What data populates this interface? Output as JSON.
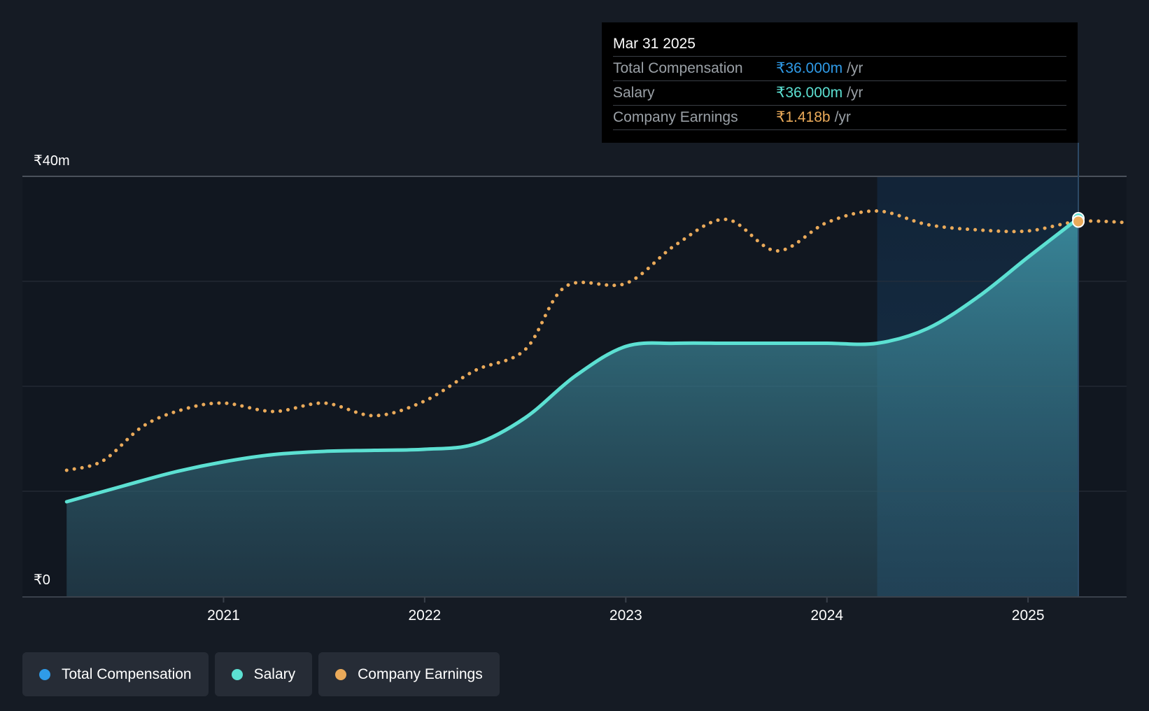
{
  "chart_data": {
    "type": "area",
    "currency": "₹",
    "y_unit": "m",
    "ylim": [
      0,
      40
    ],
    "y_tick_labels": {
      "top": "₹40m",
      "bottom": "₹0"
    },
    "grid_values": [
      10,
      20,
      30,
      40
    ],
    "x_tick_labels": [
      "2021",
      "2022",
      "2023",
      "2024",
      "2025"
    ],
    "x_tick_values": [
      2021.0,
      2022.0,
      2023.0,
      2024.0,
      2025.0
    ],
    "xlim": [
      2020.0,
      2025.49
    ],
    "highlight_start": 2024.25,
    "cursor_x": 2025.25,
    "series": [
      {
        "name": "Salary",
        "color": "#5ce0d2",
        "style": "solid-area",
        "points": [
          [
            2020.22,
            9.0
          ],
          [
            2020.5,
            10.5
          ],
          [
            2020.75,
            11.8
          ],
          [
            2021.0,
            12.8
          ],
          [
            2021.25,
            13.5
          ],
          [
            2021.5,
            13.8
          ],
          [
            2021.75,
            13.9
          ],
          [
            2022.0,
            14.0
          ],
          [
            2022.25,
            14.5
          ],
          [
            2022.5,
            17.0
          ],
          [
            2022.75,
            21.0
          ],
          [
            2023.0,
            23.8
          ],
          [
            2023.25,
            24.1
          ],
          [
            2023.5,
            24.1
          ],
          [
            2023.75,
            24.1
          ],
          [
            2024.0,
            24.1
          ],
          [
            2024.25,
            24.1
          ],
          [
            2024.5,
            25.5
          ],
          [
            2024.75,
            28.5
          ],
          [
            2025.0,
            32.3
          ],
          [
            2025.25,
            36.0
          ]
        ]
      },
      {
        "name": "Company Earnings",
        "color": "#eaaa5a",
        "style": "dotted",
        "points": [
          [
            2020.22,
            12.0
          ],
          [
            2020.4,
            12.9
          ],
          [
            2020.6,
            16.2
          ],
          [
            2020.8,
            17.8
          ],
          [
            2021.0,
            18.4
          ],
          [
            2021.25,
            17.6
          ],
          [
            2021.5,
            18.4
          ],
          [
            2021.75,
            17.2
          ],
          [
            2022.0,
            18.6
          ],
          [
            2022.25,
            21.5
          ],
          [
            2022.5,
            23.5
          ],
          [
            2022.7,
            29.5
          ],
          [
            2023.0,
            29.8
          ],
          [
            2023.25,
            33.5
          ],
          [
            2023.5,
            35.9
          ],
          [
            2023.75,
            32.9
          ],
          [
            2024.0,
            35.6
          ],
          [
            2024.25,
            36.7
          ],
          [
            2024.5,
            35.4
          ],
          [
            2024.75,
            34.9
          ],
          [
            2025.0,
            34.8
          ],
          [
            2025.25,
            35.7
          ],
          [
            2025.49,
            35.6
          ]
        ]
      }
    ],
    "tooltip": {
      "date": "Mar 31 2025",
      "rows": [
        {
          "label": "Total Compensation",
          "value": "₹36.000m",
          "unit": "/yr",
          "color": "#2f9be8"
        },
        {
          "label": "Salary",
          "value": "₹36.000m",
          "unit": "/yr",
          "color": "#5ce0d2"
        },
        {
          "label": "Company Earnings",
          "value": "₹1.418b",
          "unit": "/yr",
          "color": "#eaaa5a"
        }
      ]
    },
    "legend": [
      {
        "label": "Total Compensation",
        "color": "#2f9be8"
      },
      {
        "label": "Salary",
        "color": "#5ce0d2"
      },
      {
        "label": "Company Earnings",
        "color": "#eaaa5a"
      }
    ]
  }
}
